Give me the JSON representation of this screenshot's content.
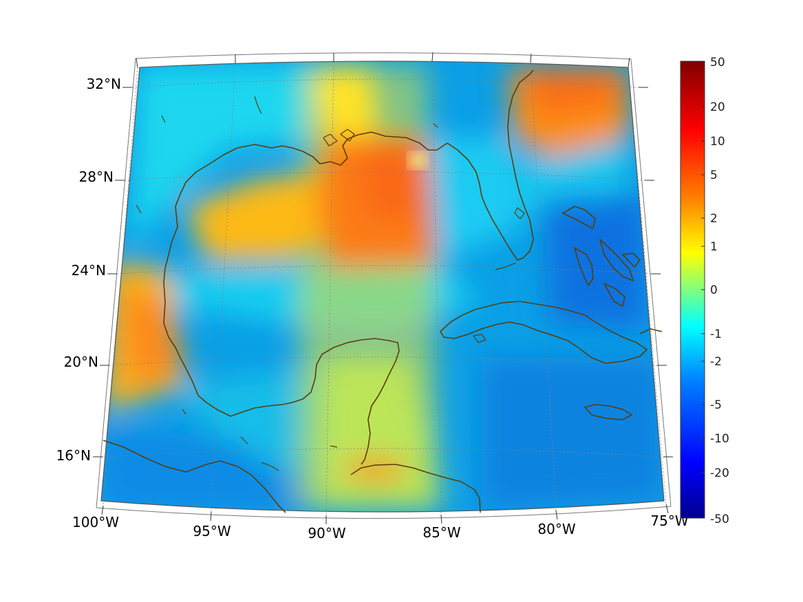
{
  "figure": {
    "projection": "conic",
    "lon_range": [
      -100,
      -75
    ],
    "lat_range": [
      14,
      33
    ],
    "grid": true
  },
  "axis_labels": {
    "lon": [
      "100°W",
      "95°W",
      "90°W",
      "85°W",
      "80°W",
      "75°W"
    ],
    "lat": [
      "32°N",
      "28°N",
      "24°N",
      "20°N",
      "16°N"
    ]
  },
  "colorbar": {
    "colormap": "jet",
    "scale": "symmetric-log",
    "ticks": [
      "50",
      "20",
      "10",
      "5",
      "2",
      "1",
      "0",
      "-1",
      "-2",
      "-5",
      "-10",
      "-20",
      "-50"
    ],
    "range": [
      -50,
      50
    ]
  },
  "colors": {
    "coastline": "#5a3d0a",
    "gridline": "#808080",
    "frame": "#555555"
  }
}
